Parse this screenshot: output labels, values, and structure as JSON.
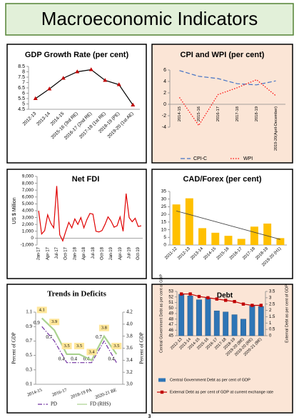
{
  "page": {
    "title": "Macroeconomic Indicators",
    "page_number": "3"
  },
  "chart_data": [
    {
      "type": "line",
      "title": "GDP Growth Rate (per cent)",
      "categories": [
        "2012-13",
        "2013-14",
        "2014-15",
        "2015-16 (3rd RE)",
        "2016-17 (2nd RE)",
        "2017-18 (1st RE)",
        "2018-19 (PE)",
        "2019-20 (1st AE)"
      ],
      "series": [
        {
          "color": "#000000",
          "marker": "triangle",
          "marker_color": "#c00000",
          "values": [
            5.5,
            6.4,
            7.4,
            8.0,
            8.2,
            7.2,
            6.8,
            4.9
          ]
        }
      ],
      "ylim": [
        4.5,
        8.5
      ],
      "yticks": [
        4.5,
        5,
        5.5,
        6,
        6.5,
        7,
        7.5,
        8,
        8.5
      ]
    },
    {
      "type": "line",
      "title": "CPI and WPI (per cent)",
      "background": "#fbe5d6",
      "legend": "bottom",
      "categories": [
        "2014-15",
        "2015-16",
        "2016-17",
        "2017-18",
        "2018-19",
        "2019-20(April-December)"
      ],
      "series": [
        {
          "name": "CPI-C",
          "color": "#4472c4",
          "dash": "dashed",
          "values": [
            5.9,
            4.9,
            4.5,
            3.6,
            3.4,
            4.1
          ]
        },
        {
          "name": "WPI",
          "color": "#ff0000",
          "dash": "dotted",
          "values": [
            1.2,
            -3.7,
            1.7,
            2.9,
            4.3,
            1.5
          ]
        }
      ],
      "ylim": [
        -4,
        6
      ],
      "yticks": [
        -4,
        -2,
        0,
        2,
        4,
        6
      ]
    },
    {
      "type": "line",
      "title": "Net FDI",
      "ylabel": "US $ Million",
      "categories": [
        "Jan-17",
        null,
        null,
        "Apr-17",
        null,
        null,
        "Jul-17",
        null,
        null,
        "Oct-17",
        null,
        null,
        "Jan-18",
        null,
        null,
        "Apr-18",
        null,
        null,
        "Jul-18",
        null,
        null,
        "Oct-18",
        null,
        null,
        "Jan-19",
        null,
        null,
        "Apr-19",
        null,
        null,
        "Jul-19",
        null,
        null,
        "Oct-19",
        null
      ],
      "series": [
        {
          "color": "#e00000",
          "values": [
            4000,
            600,
            1100,
            3400,
            2200,
            1500,
            7600,
            500,
            -400,
            1000,
            2300,
            1500,
            2800,
            2000,
            3000,
            1500,
            2700,
            3600,
            3500,
            1000,
            900,
            1100,
            2000,
            3100,
            2500,
            1600,
            1800,
            3100,
            1000,
            6500,
            3000,
            2400,
            2900,
            1700,
            1800
          ]
        }
      ],
      "ylim": [
        -1000,
        9000
      ],
      "yticks": [
        {
          "value": -1000,
          "label": "-1,000"
        },
        0,
        {
          "value": 1000,
          "label": "1,000"
        },
        {
          "value": 2000,
          "label": "2,000"
        },
        {
          "value": 3000,
          "label": "3,000"
        },
        {
          "value": 4000,
          "label": "4,000"
        },
        {
          "value": 5000,
          "label": "5,000"
        },
        {
          "value": 6000,
          "label": "6,000"
        },
        {
          "value": 7000,
          "label": "7,000"
        },
        {
          "value": 8000,
          "label": "8,000"
        },
        {
          "value": 9000,
          "label": "9,000"
        }
      ]
    },
    {
      "type": "bar",
      "title": "CAD/Forex (per cent)",
      "trendline": true,
      "trend_color": "#404040",
      "categories": [
        "2011-12",
        "2012-13",
        "2013-14",
        "2014-15",
        "2015-16",
        "2016-17",
        "2017-18",
        "2018-19",
        "2019-20 (H1)"
      ],
      "series": [
        {
          "color": "#ffc000",
          "values": [
            26.5,
            30.5,
            11,
            8,
            6,
            4,
            12,
            14,
            4.5
          ]
        }
      ],
      "ylim": [
        0,
        35
      ],
      "yticks": [
        0,
        5,
        10,
        15,
        20,
        25,
        30,
        35
      ]
    },
    {
      "type": "line",
      "title": "Trends in Deficits",
      "ylabel": "Percent of GDP",
      "y2label": "Percent of GDP",
      "legend": "bottom",
      "categories": [
        "2014-15",
        null,
        "2016-17",
        null,
        "2018-19 PA",
        null,
        "2020-21 BE"
      ],
      "series": [
        {
          "name": "PD",
          "color": "#7030a0",
          "dash": "dashdot",
          "data_labels": true,
          "values": [
            0.9,
            0.7,
            0.4,
            0.4,
            0.4,
            0.7,
            0.4
          ]
        },
        {
          "name": "FD (RHS)",
          "color": "#a9d18e",
          "axis": "y2",
          "data_labels": true,
          "label_fill": "#ffe699",
          "values": [
            4.1,
            3.9,
            3.5,
            3.5,
            3.4,
            3.8,
            3.5
          ]
        }
      ],
      "ylim": [
        0.1,
        1.1
      ],
      "yticks": [
        0.1,
        0.3,
        0.5,
        0.7,
        0.9,
        1.1
      ],
      "y2lim": [
        3.0,
        4.2
      ],
      "y2ticks": [
        {
          "value": 3.0,
          "label": "3.0"
        },
        3.2,
        3.4,
        3.6,
        3.8,
        {
          "value": 4.0,
          "label": "4.0"
        },
        4.2
      ]
    },
    {
      "type": "bar",
      "title": "Debt",
      "background": "#fbe5d6",
      "legend": "bottom",
      "ylabel": "Central Government Debt as per cent of GDP",
      "y2label": "External Debt as per cent of GDP",
      "categories": [
        "2012-13",
        "2013-14",
        "2014-15",
        "2015-16",
        "2016-17",
        "2017-18",
        "2018-19",
        "2019-20 (BE)",
        "2019-20 (RE)",
        "2020-21 (BE)"
      ],
      "series": [
        {
          "name": "Central Government Debt as per cent of GDP",
          "type": "bar",
          "color": "#2e75b6",
          "values": [
            52.5,
            52.2,
            51.5,
            51.8,
            49.5,
            49.3,
            48.8,
            48.0,
            50.4,
            50.3
          ]
        },
        {
          "name": "External Debt as per cent of GDP at current exchange rate",
          "type": "line",
          "axis": "y2",
          "color": "#c00000",
          "marker": "square",
          "marker_color": "#c00000",
          "values": [
            3.3,
            3.3,
            3.1,
            3.0,
            2.9,
            2.8,
            2.7,
            2.5,
            2.4,
            2.4
          ]
        }
      ],
      "ylim": [
        45,
        53
      ],
      "yticks": [
        45,
        46,
        47,
        48,
        49,
        50,
        51,
        52,
        53
      ],
      "y2lim": [
        0,
        3.5
      ],
      "y2ticks": [
        0,
        0.5,
        1,
        1.5,
        2,
        2.5,
        3,
        3.5
      ]
    }
  ]
}
